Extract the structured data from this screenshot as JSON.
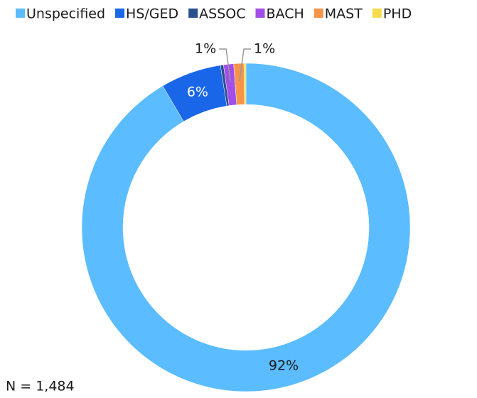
{
  "chart_data": {
    "type": "donut",
    "categories": [
      "Unspecified",
      "HS/GED",
      "ASSOC",
      "BACH",
      "MAST",
      "PHD"
    ],
    "values": [
      92,
      6,
      0.3,
      1,
      1,
      0.2
    ],
    "value_labels": [
      "92%",
      "6%",
      null,
      "1%",
      "1%",
      null
    ],
    "colors": [
      "#5bbcff",
      "#1a66e8",
      "#2c4f8e",
      "#a24ee8",
      "#f7944a",
      "#f5dc50"
    ],
    "legend": "top",
    "footnote": "N = 1,484"
  }
}
